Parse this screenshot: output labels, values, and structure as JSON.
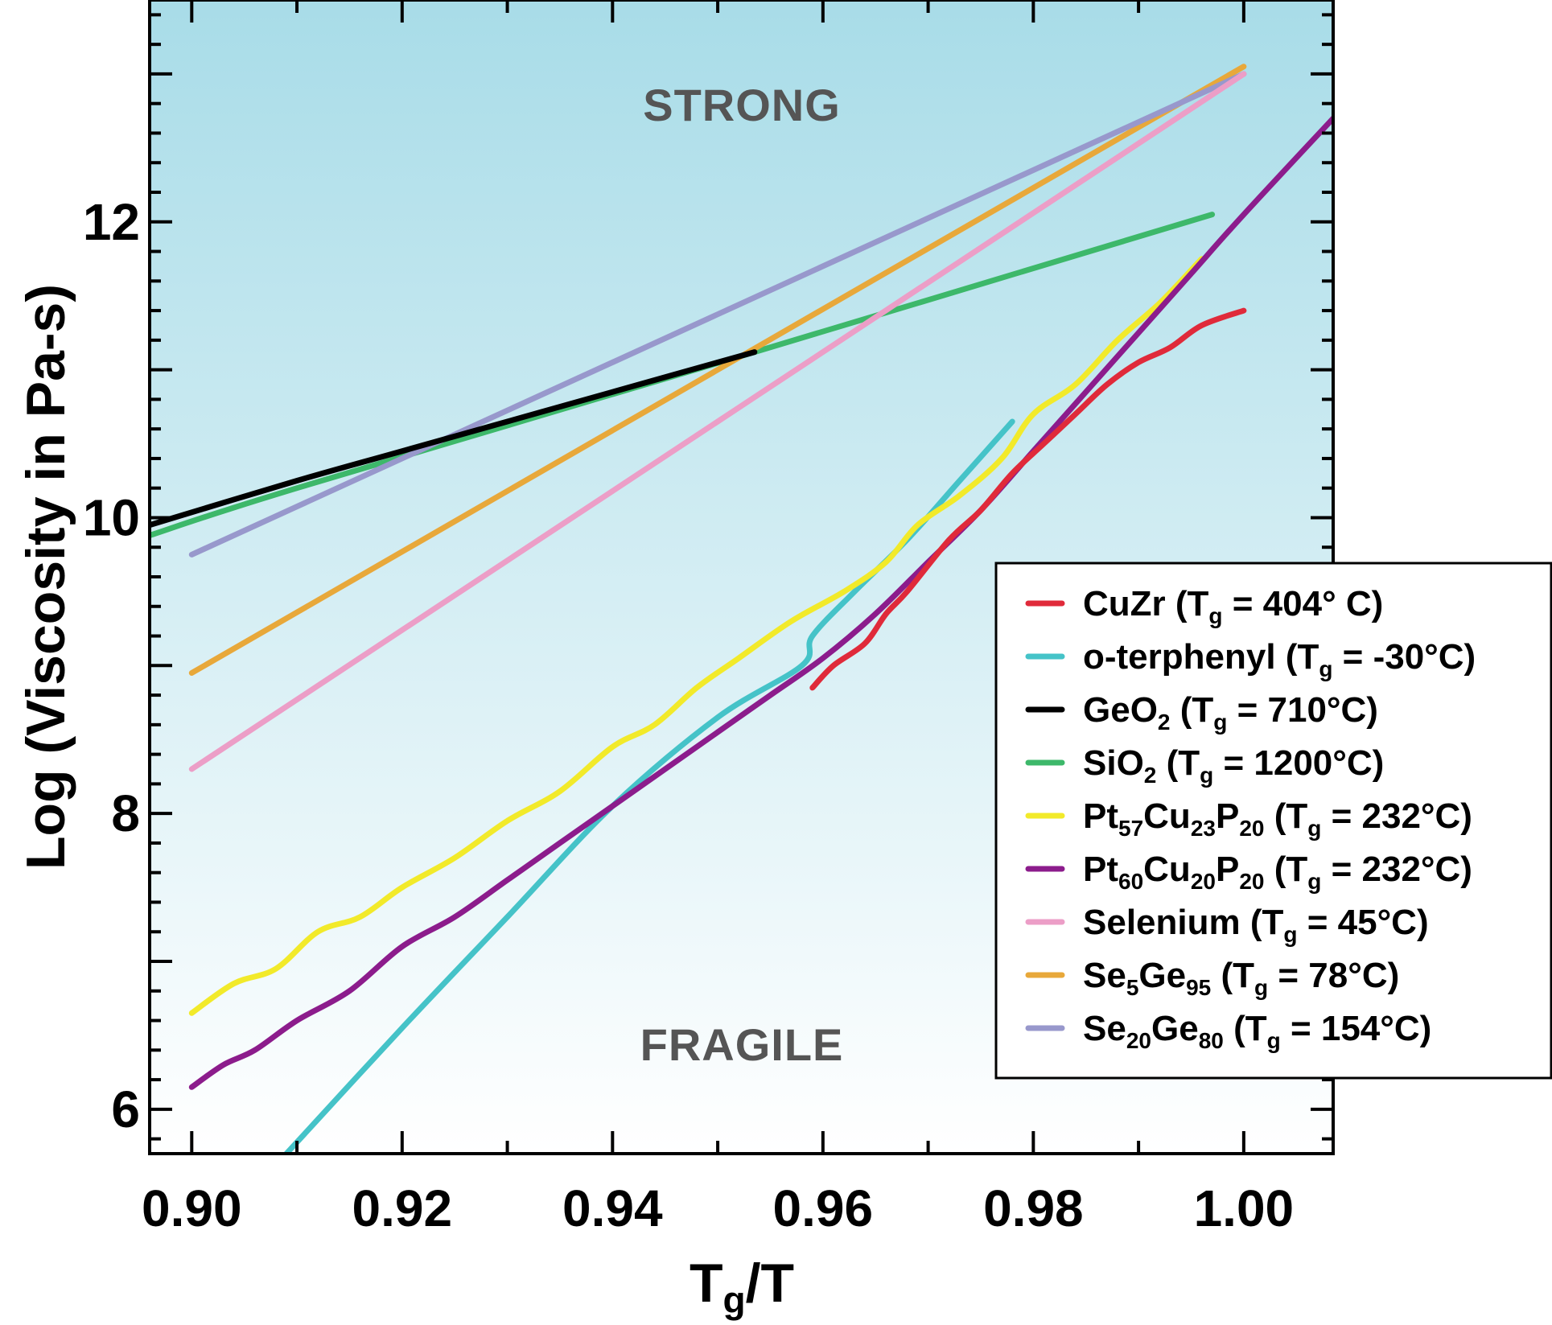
{
  "chart_data": {
    "type": "line",
    "xlabel": "T",
    "xlabel_sub": "g",
    "xlabel_rest": "/T",
    "ylabel": "Log (Viscosity in Pa-s)",
    "xlim": [
      0.896,
      1.0085
    ],
    "ylim": [
      5.7,
      13.5
    ],
    "xticks": [
      0.9,
      0.92,
      0.94,
      0.96,
      0.98,
      1.0
    ],
    "xtick_labels": [
      "0.90",
      "0.92",
      "0.94",
      "0.96",
      "0.98",
      "1.00"
    ],
    "yticks": [
      6,
      8,
      10,
      12
    ],
    "ytick_labels": [
      "6",
      "8",
      "10",
      "12"
    ],
    "annotations": {
      "strong": "STRONG",
      "fragile": "FRAGILE"
    },
    "grid": false,
    "legend_position": "center-right",
    "background_gradient": [
      "#a8dce8",
      "#ffffff"
    ],
    "series": [
      {
        "color": "#e02a3a",
        "legend": [
          [
            "CuZr (T"
          ],
          [
            "g",
            "sub"
          ],
          [
            " = 404° C)"
          ]
        ],
        "points": [
          [
            0.959,
            8.85
          ],
          [
            0.961,
            9.0
          ],
          [
            0.964,
            9.15
          ],
          [
            0.966,
            9.35
          ],
          [
            0.968,
            9.5
          ],
          [
            0.972,
            9.85
          ],
          [
            0.975,
            10.05
          ],
          [
            0.978,
            10.3
          ],
          [
            0.981,
            10.5
          ],
          [
            0.984,
            10.7
          ],
          [
            0.987,
            10.9
          ],
          [
            0.99,
            11.05
          ],
          [
            0.993,
            11.15
          ],
          [
            0.996,
            11.3
          ],
          [
            1.0,
            11.4
          ]
        ]
      },
      {
        "color": "#45c3c8",
        "legend": [
          [
            "o-terphenyl (T"
          ],
          [
            "g",
            "sub"
          ],
          [
            " = -30°C)"
          ]
        ],
        "points": [
          [
            0.909,
            5.7
          ],
          [
            0.92,
            6.55
          ],
          [
            0.93,
            7.3
          ],
          [
            0.94,
            8.05
          ],
          [
            0.95,
            8.65
          ],
          [
            0.958,
            9.0
          ],
          [
            0.959,
            9.2
          ],
          [
            0.963,
            9.5
          ],
          [
            0.968,
            9.85
          ],
          [
            0.973,
            10.25
          ],
          [
            0.978,
            10.65
          ]
        ]
      },
      {
        "color": "#000000",
        "legend": [
          [
            "GeO"
          ],
          [
            "2",
            "sub"
          ],
          [
            " (T"
          ],
          [
            "g",
            "sub"
          ],
          [
            " = 710°C)"
          ]
        ],
        "points": [
          [
            0.896,
            9.95
          ],
          [
            0.91,
            10.25
          ],
          [
            0.92,
            10.45
          ],
          [
            0.93,
            10.65
          ],
          [
            0.94,
            10.85
          ],
          [
            0.9535,
            11.12
          ]
        ]
      },
      {
        "color": "#3db86a",
        "legend": [
          [
            "SiO"
          ],
          [
            "2",
            "sub"
          ],
          [
            " (T"
          ],
          [
            "g",
            "sub"
          ],
          [
            " = 1200°C)"
          ]
        ],
        "points": [
          [
            0.896,
            9.88
          ],
          [
            0.91,
            10.2
          ],
          [
            0.9535,
            11.12
          ],
          [
            0.997,
            12.05
          ]
        ]
      },
      {
        "color": "#f2ea2a",
        "legend": [
          [
            "Pt"
          ],
          [
            "57",
            "sub"
          ],
          [
            "Cu"
          ],
          [
            "23",
            "sub"
          ],
          [
            "P"
          ],
          [
            "20",
            "sub"
          ],
          [
            " (T"
          ],
          [
            "g",
            "sub"
          ],
          [
            " = 232°C)"
          ]
        ],
        "points": [
          [
            0.9,
            6.65
          ],
          [
            0.904,
            6.85
          ],
          [
            0.908,
            6.95
          ],
          [
            0.912,
            7.2
          ],
          [
            0.916,
            7.3
          ],
          [
            0.92,
            7.5
          ],
          [
            0.925,
            7.7
          ],
          [
            0.93,
            7.95
          ],
          [
            0.935,
            8.15
          ],
          [
            0.94,
            8.45
          ],
          [
            0.944,
            8.6
          ],
          [
            0.948,
            8.85
          ],
          [
            0.952,
            9.05
          ],
          [
            0.957,
            9.3
          ],
          [
            0.962,
            9.5
          ],
          [
            0.966,
            9.7
          ],
          [
            0.969,
            9.95
          ],
          [
            0.973,
            10.15
          ],
          [
            0.977,
            10.4
          ],
          [
            0.98,
            10.7
          ],
          [
            0.984,
            10.9
          ],
          [
            0.988,
            11.2
          ],
          [
            0.992,
            11.45
          ],
          [
            0.996,
            11.75
          ]
        ]
      },
      {
        "color": "#8c1c8c",
        "legend": [
          [
            "Pt"
          ],
          [
            "60",
            "sub"
          ],
          [
            "Cu"
          ],
          [
            "20",
            "sub"
          ],
          [
            "P"
          ],
          [
            "20",
            "sub"
          ],
          [
            " (T"
          ],
          [
            "g",
            "sub"
          ],
          [
            " = 232°C)"
          ]
        ],
        "points": [
          [
            0.9,
            6.15
          ],
          [
            0.903,
            6.3
          ],
          [
            0.906,
            6.4
          ],
          [
            0.91,
            6.6
          ],
          [
            0.915,
            6.8
          ],
          [
            0.92,
            7.1
          ],
          [
            0.925,
            7.3
          ],
          [
            0.93,
            7.55
          ],
          [
            0.935,
            7.8
          ],
          [
            0.94,
            8.05
          ],
          [
            0.945,
            8.3
          ],
          [
            0.95,
            8.55
          ],
          [
            0.955,
            8.8
          ],
          [
            0.96,
            9.05
          ],
          [
            0.965,
            9.35
          ],
          [
            0.97,
            9.7
          ],
          [
            0.975,
            10.05
          ],
          [
            0.98,
            10.45
          ],
          [
            0.985,
            10.85
          ],
          [
            0.99,
            11.25
          ],
          [
            0.995,
            11.65
          ],
          [
            1.0,
            12.05
          ],
          [
            1.0085,
            12.7
          ]
        ]
      },
      {
        "color": "#ec9ec7",
        "legend": [
          [
            "Selenium (T"
          ],
          [
            "g",
            "sub"
          ],
          [
            " = 45°C)"
          ]
        ],
        "points": [
          [
            0.9,
            8.3
          ],
          [
            1.0,
            13.0
          ]
        ]
      },
      {
        "color": "#e8a83a",
        "legend": [
          [
            "Se"
          ],
          [
            "5",
            "sub"
          ],
          [
            "Ge"
          ],
          [
            "95",
            "sub"
          ],
          [
            " (T"
          ],
          [
            "g",
            "sub"
          ],
          [
            " = 78°C)"
          ]
        ],
        "points": [
          [
            0.9,
            8.95
          ],
          [
            1.0,
            13.05
          ]
        ]
      },
      {
        "color": "#9898cc",
        "legend": [
          [
            "Se"
          ],
          [
            "20",
            "sub"
          ],
          [
            "Ge"
          ],
          [
            "80",
            "sub"
          ],
          [
            " (T"
          ],
          [
            "g",
            "sub"
          ],
          [
            " = 154°C)"
          ]
        ],
        "points": [
          [
            0.9,
            9.75
          ],
          [
            1.0,
            13.0
          ]
        ]
      }
    ]
  }
}
